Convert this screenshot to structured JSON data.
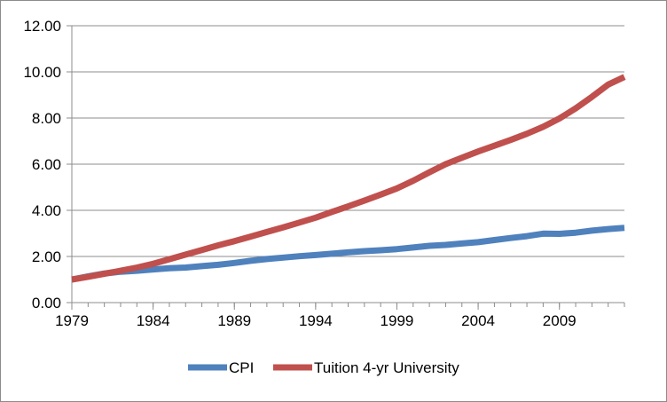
{
  "chart_data": {
    "type": "line",
    "title": "",
    "xlabel": "",
    "ylabel": "",
    "ylim": [
      0,
      12
    ],
    "xlim": [
      1979,
      2013
    ],
    "y_ticks": [
      "0.00",
      "2.00",
      "4.00",
      "6.00",
      "8.00",
      "10.00",
      "12.00"
    ],
    "x_ticks": [
      "1979",
      "1984",
      "1989",
      "1994",
      "1999",
      "2004",
      "2009"
    ],
    "grid": "horizontal",
    "legend_position": "bottom",
    "x": [
      1979,
      1980,
      1981,
      1982,
      1983,
      1984,
      1985,
      1986,
      1987,
      1988,
      1989,
      1990,
      1991,
      1992,
      1993,
      1994,
      1995,
      1996,
      1997,
      1998,
      1999,
      2000,
      2001,
      2002,
      2003,
      2004,
      2005,
      2006,
      2007,
      2008,
      2009,
      2010,
      2011,
      2012,
      2013
    ],
    "series": [
      {
        "name": "CPI",
        "color": "#4f81bd",
        "values": [
          1.0,
          1.14,
          1.26,
          1.34,
          1.38,
          1.44,
          1.49,
          1.52,
          1.58,
          1.64,
          1.72,
          1.81,
          1.89,
          1.95,
          2.01,
          2.06,
          2.12,
          2.18,
          2.23,
          2.27,
          2.32,
          2.39,
          2.46,
          2.5,
          2.56,
          2.62,
          2.71,
          2.8,
          2.88,
          2.99,
          2.98,
          3.03,
          3.12,
          3.19,
          3.24
        ]
      },
      {
        "name": "Tuition 4-yr University",
        "color": "#c0504d",
        "values": [
          1.0,
          1.12,
          1.25,
          1.38,
          1.52,
          1.68,
          1.88,
          2.08,
          2.28,
          2.48,
          2.66,
          2.86,
          3.06,
          3.26,
          3.47,
          3.68,
          3.93,
          4.17,
          4.42,
          4.68,
          4.95,
          5.28,
          5.65,
          6.0,
          6.28,
          6.55,
          6.8,
          7.05,
          7.32,
          7.62,
          7.98,
          8.42,
          8.92,
          9.45,
          9.78
        ]
      }
    ]
  }
}
